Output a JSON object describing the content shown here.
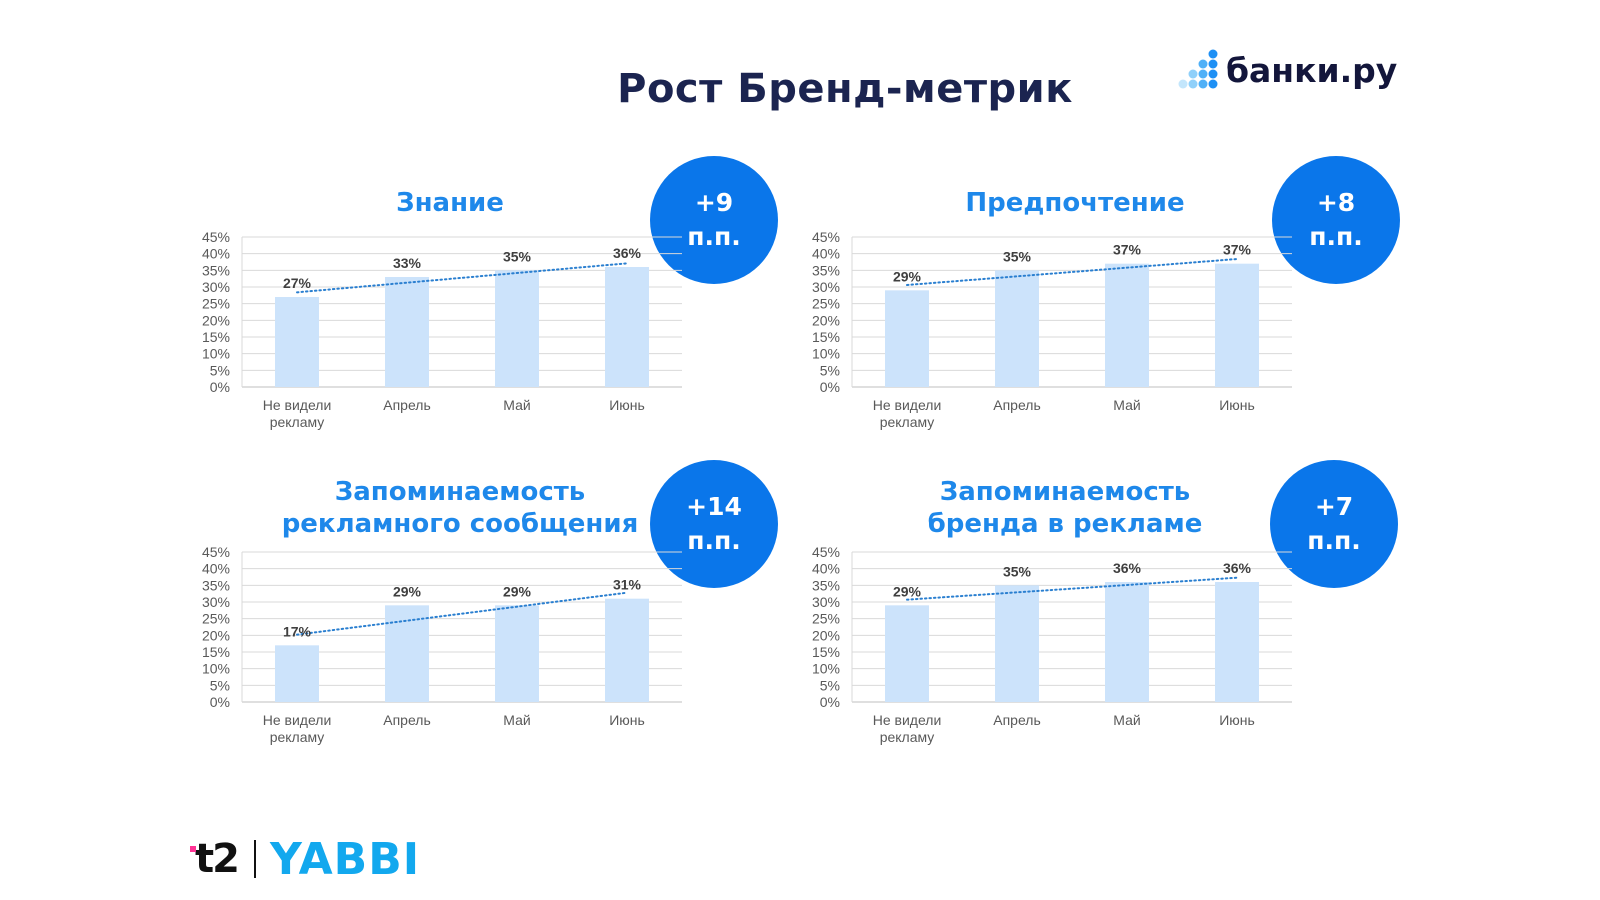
{
  "title": "Рост Бренд-метрик",
  "logo": {
    "text": "банки.ру",
    "icon": "banki-dots-icon"
  },
  "footer": {
    "logo_t2": "t2",
    "logo_yabbi": "YABBI"
  },
  "colors": {
    "bar": "#cce3fb",
    "title": "#1e88ea",
    "badge": "#0a76ea",
    "trend": "#2a7fd0",
    "heading": "#1b2450"
  },
  "panels": [
    {
      "title_lines": [
        "Знание"
      ],
      "badge": [
        "+9",
        "п.п."
      ]
    },
    {
      "title_lines": [
        "Предпочтение"
      ],
      "badge": [
        "+8",
        "п.п."
      ]
    },
    {
      "title_lines": [
        "Запоминаемость",
        "рекламного сообщения"
      ],
      "badge": [
        "+14",
        "п.п."
      ]
    },
    {
      "title_lines": [
        "Запоминаемость",
        "бренда в рекламе"
      ],
      "badge": [
        "+7",
        "п.п."
      ]
    }
  ],
  "chart_data": [
    {
      "type": "bar",
      "title": "Знание",
      "categories": [
        "Не видели рекламу",
        "Апрель",
        "Май",
        "Июнь"
      ],
      "values": [
        27,
        33,
        35,
        36
      ],
      "value_labels": [
        "27%",
        "33%",
        "35%",
        "36%"
      ],
      "ylim": [
        0,
        45
      ],
      "yticks": [
        "0%",
        "5%",
        "10%",
        "15%",
        "20%",
        "25%",
        "30%",
        "35%",
        "40%",
        "45%"
      ],
      "trendline": "linear, dotted",
      "grid": true
    },
    {
      "type": "bar",
      "title": "Предпочтение",
      "categories": [
        "Не видели рекламу",
        "Апрель",
        "Май",
        "Июнь"
      ],
      "values": [
        29,
        35,
        37,
        37
      ],
      "value_labels": [
        "29%",
        "35%",
        "37%",
        "37%"
      ],
      "ylim": [
        0,
        45
      ],
      "yticks": [
        "0%",
        "5%",
        "10%",
        "15%",
        "20%",
        "25%",
        "30%",
        "35%",
        "40%",
        "45%"
      ],
      "trendline": "linear, dotted",
      "grid": true
    },
    {
      "type": "bar",
      "title": "Запоминаемость рекламного сообщения",
      "categories": [
        "Не видели рекламу",
        "Апрель",
        "Май",
        "Июнь"
      ],
      "values": [
        17,
        29,
        29,
        31
      ],
      "value_labels": [
        "17%",
        "29%",
        "29%",
        "31%"
      ],
      "ylim": [
        0,
        45
      ],
      "yticks": [
        "0%",
        "5%",
        "10%",
        "15%",
        "20%",
        "25%",
        "30%",
        "35%",
        "40%",
        "45%"
      ],
      "trendline": "linear, dotted",
      "grid": true
    },
    {
      "type": "bar",
      "title": "Запоминаемость бренда в рекламе",
      "categories": [
        "Не видели рекламу",
        "Апрель",
        "Май",
        "Июнь"
      ],
      "values": [
        29,
        35,
        36,
        36
      ],
      "value_labels": [
        "29%",
        "35%",
        "36%",
        "36%"
      ],
      "ylim": [
        0,
        45
      ],
      "yticks": [
        "0%",
        "5%",
        "10%",
        "15%",
        "20%",
        "25%",
        "30%",
        "35%",
        "40%",
        "45%"
      ],
      "trendline": "linear, dotted",
      "grid": true
    }
  ]
}
